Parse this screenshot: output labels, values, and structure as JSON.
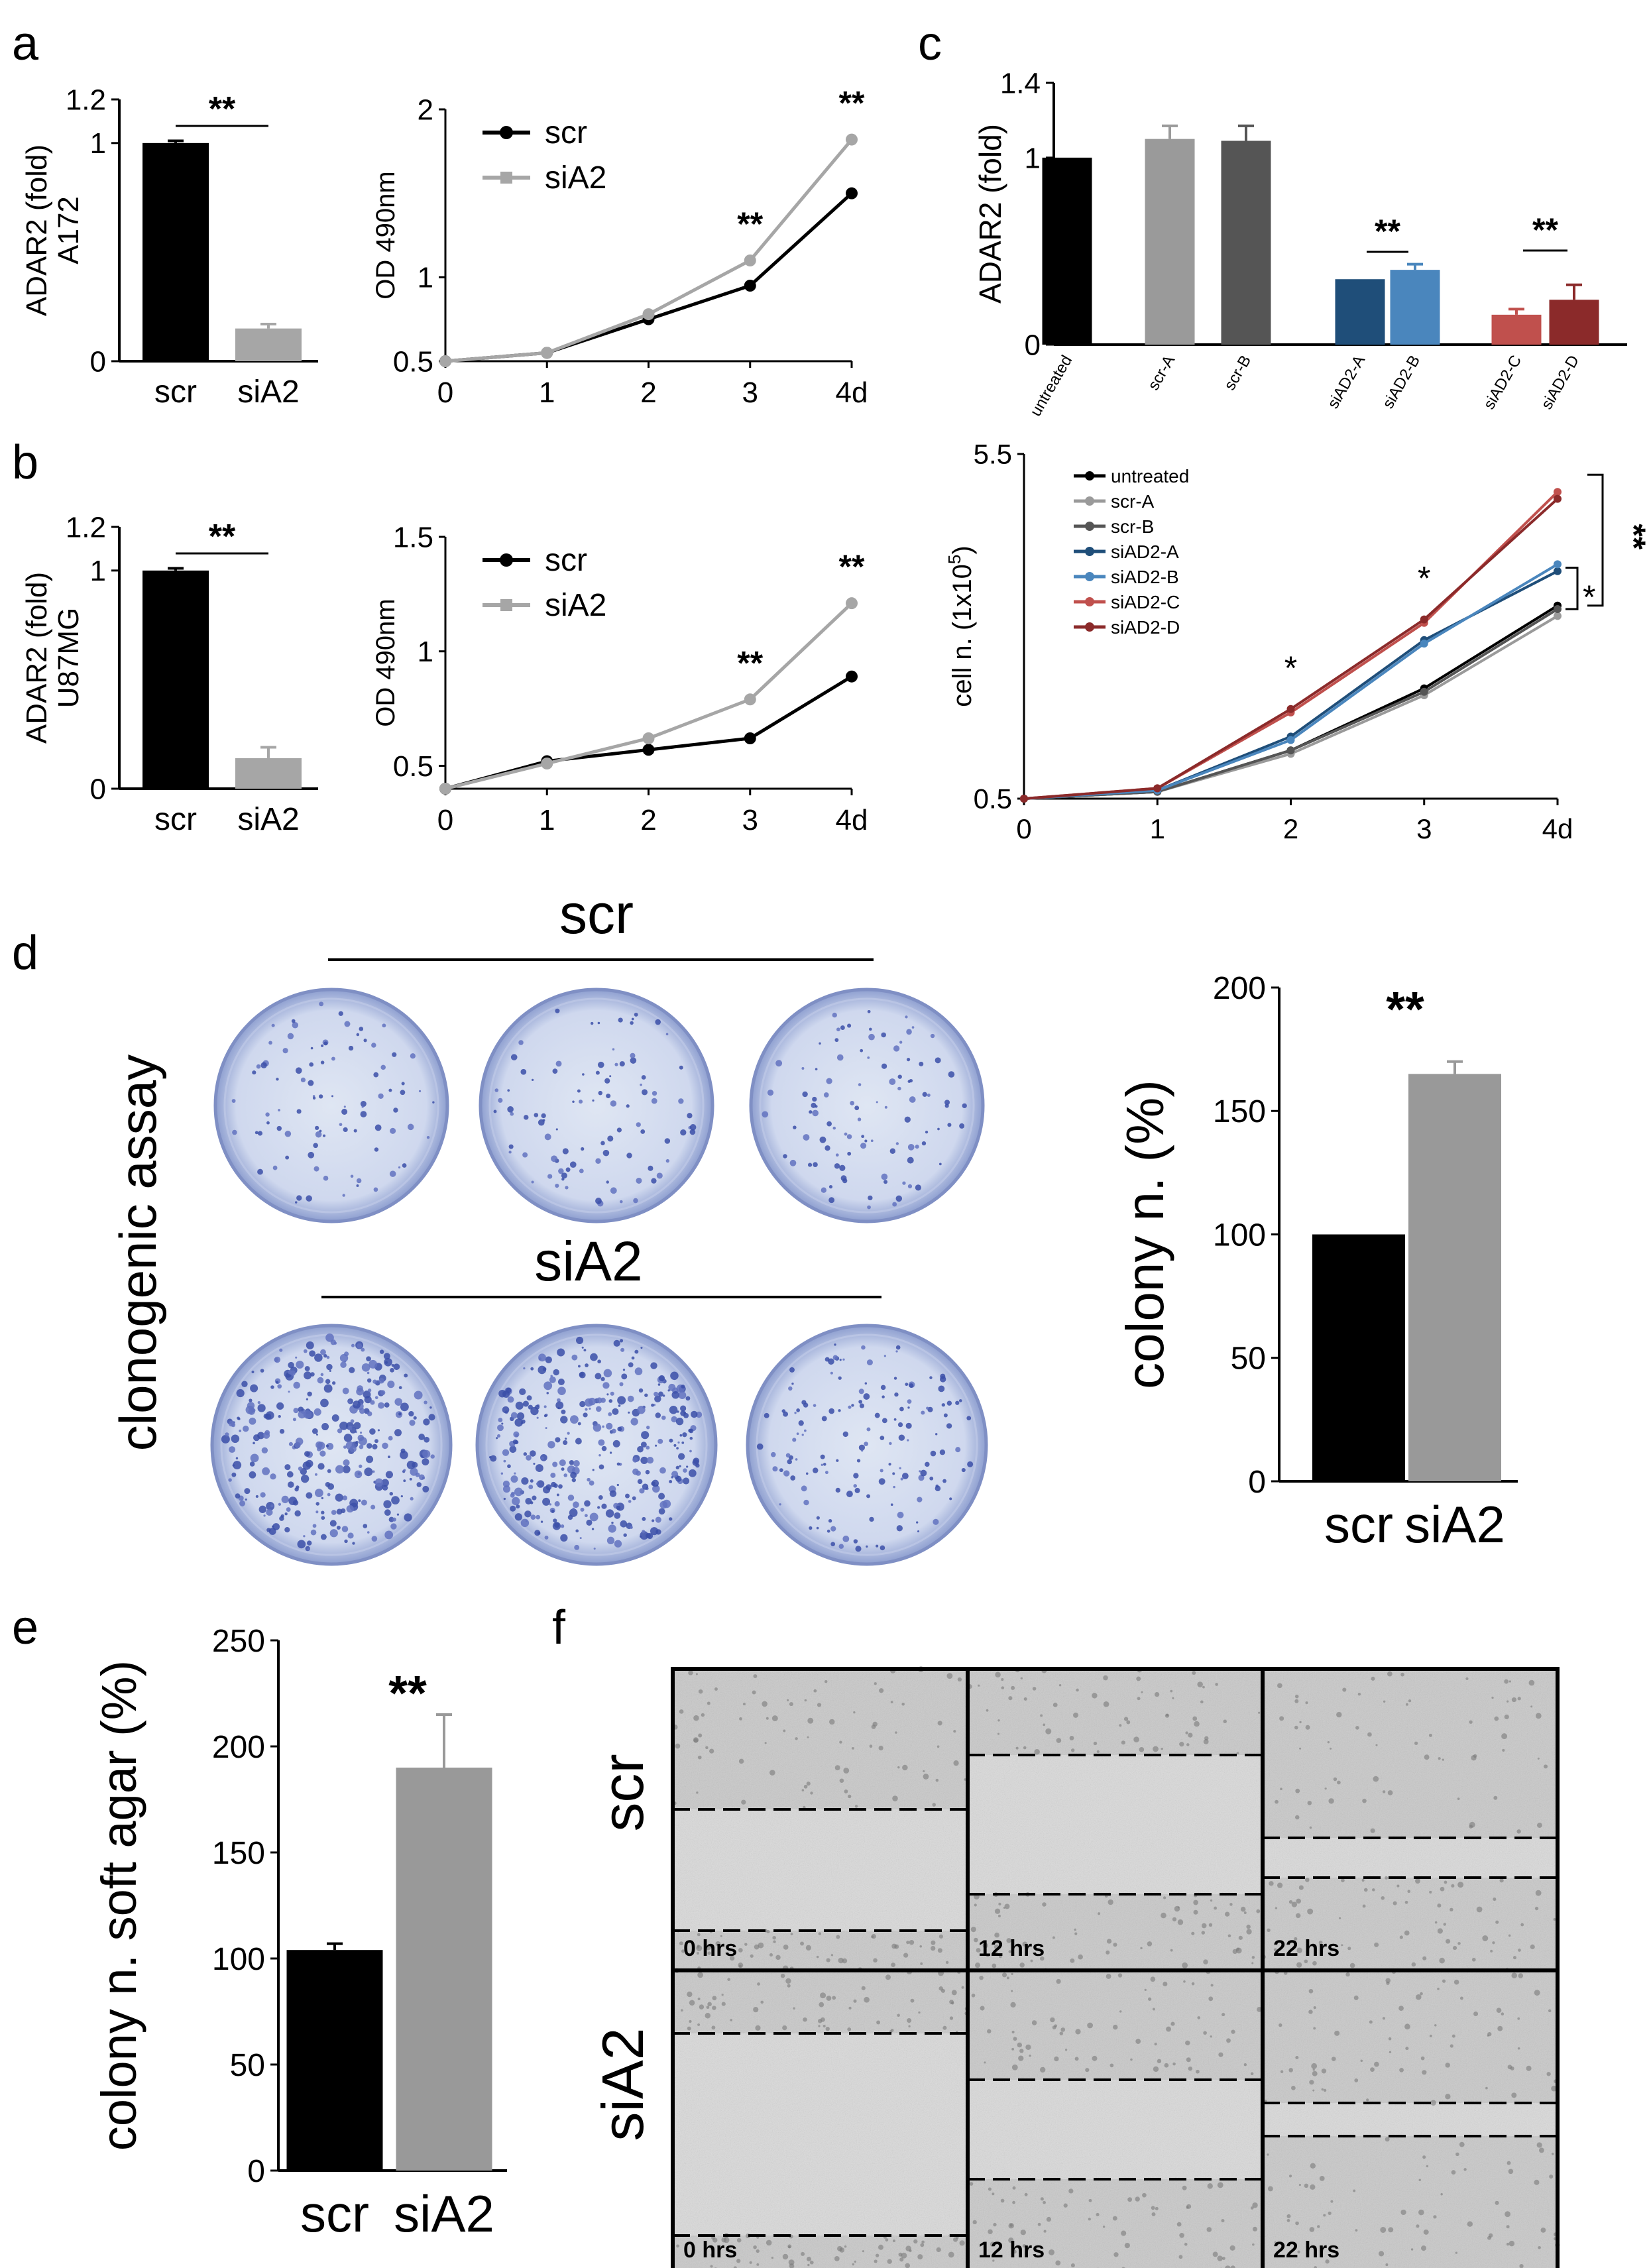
{
  "panels": {
    "a": "a",
    "b": "b",
    "c": "c",
    "d": "d",
    "e": "e",
    "f": "f"
  },
  "colors": {
    "black": "#000000",
    "gray": "#a6a6a6",
    "dark_gray": "#555555",
    "blue_dark": "#1f4e79",
    "blue_light": "#4a86bd",
    "red_light": "#c0504d",
    "red_dark": "#8b2a2a"
  },
  "chart_data": [
    {
      "id": "a-bar",
      "type": "bar",
      "title": "",
      "ylabel": "ADAR2 (fold)",
      "ylabel2": "A172",
      "xlabel": "",
      "categories": [
        "scr",
        "siA2"
      ],
      "values": [
        1.0,
        0.15
      ],
      "errors": [
        0.01,
        0.02
      ],
      "ylim": [
        0,
        1.2
      ],
      "yticks": [
        0,
        1,
        1.2
      ],
      "ytick_labels": [
        "0",
        "1",
        "1.2"
      ],
      "bar_colors": [
        "#000000",
        "#a6a6a6"
      ],
      "annotation": "**"
    },
    {
      "id": "a-line",
      "type": "line",
      "title": "",
      "ylabel": "OD 490nm",
      "xlabel": "",
      "x": [
        0,
        1,
        2,
        3,
        4
      ],
      "x_tick_labels": [
        "0",
        "1",
        "2",
        "3",
        "4d"
      ],
      "ylim": [
        0.5,
        2
      ],
      "yticks": [
        0.5,
        1,
        2
      ],
      "ytick_labels": [
        "0.5",
        "1",
        "2"
      ],
      "series": [
        {
          "name": "scr",
          "color": "#000000",
          "values": [
            0.5,
            0.55,
            0.75,
            0.95,
            1.5
          ]
        },
        {
          "name": "siA2",
          "color": "#a6a6a6",
          "values": [
            0.5,
            0.55,
            0.78,
            1.1,
            1.82
          ]
        }
      ],
      "annotations": [
        {
          "x": 3,
          "text": "**"
        },
        {
          "x": 4,
          "text": "**"
        }
      ],
      "legend": "top-left"
    },
    {
      "id": "b-bar",
      "type": "bar",
      "title": "",
      "ylabel": "ADAR2 (fold)",
      "ylabel2": "U87MG",
      "xlabel": "",
      "categories": [
        "scr",
        "siA2"
      ],
      "values": [
        1.0,
        0.14
      ],
      "errors": [
        0.01,
        0.05
      ],
      "ylim": [
        0,
        1.2
      ],
      "yticks": [
        0,
        1,
        1.2
      ],
      "ytick_labels": [
        "0",
        "1",
        "1.2"
      ],
      "bar_colors": [
        "#000000",
        "#a6a6a6"
      ],
      "annotation": "**"
    },
    {
      "id": "b-line",
      "type": "line",
      "title": "",
      "ylabel": "OD 490nm",
      "xlabel": "",
      "x": [
        0,
        1,
        2,
        3,
        4
      ],
      "x_tick_labels": [
        "0",
        "1",
        "2",
        "3",
        "4d"
      ],
      "ylim": [
        0.4,
        1.5
      ],
      "yticks": [
        0.5,
        1,
        1.5
      ],
      "ytick_labels": [
        "0.5",
        "1",
        "1.5"
      ],
      "series": [
        {
          "name": "scr",
          "color": "#000000",
          "values": [
            0.4,
            0.52,
            0.57,
            0.62,
            0.89
          ]
        },
        {
          "name": "siA2",
          "color": "#a6a6a6",
          "values": [
            0.4,
            0.51,
            0.62,
            0.79,
            1.21
          ]
        }
      ],
      "annotations": [
        {
          "x": 3,
          "text": "**"
        },
        {
          "x": 4,
          "text": "**"
        }
      ],
      "legend": "top-left"
    },
    {
      "id": "c-bar",
      "type": "bar",
      "title": "",
      "ylabel": "ADAR2 (fold)",
      "xlabel": "",
      "categories": [
        "untreated",
        "scr-A",
        "scr-B",
        "siAD2-A",
        "siAD2-B",
        "siAD2-C",
        "siAD2-D"
      ],
      "values": [
        1.0,
        1.1,
        1.09,
        0.35,
        0.4,
        0.16,
        0.24
      ],
      "errors": [
        0.0,
        0.07,
        0.08,
        0.0,
        0.03,
        0.03,
        0.08
      ],
      "ylim": [
        0,
        1.4
      ],
      "yticks": [
        0,
        1,
        1.4
      ],
      "ytick_labels": [
        "0",
        "1",
        "1.4"
      ],
      "bar_colors": [
        "#000000",
        "#9a9a9a",
        "#555555",
        "#1f4e79",
        "#4a86bd",
        "#c0504d",
        "#8b2a2a"
      ],
      "annotations": [
        {
          "between": [
            "siAD2-A",
            "siAD2-B"
          ],
          "text": "**"
        },
        {
          "between": [
            "siAD2-C",
            "siAD2-D"
          ],
          "text": "**"
        }
      ]
    },
    {
      "id": "c-line",
      "type": "line",
      "title": "",
      "ylabel": "cell n. (1x10",
      "ylabel_sup": "5",
      "ylabel_end": ")",
      "xlabel": "",
      "x": [
        0,
        1,
        2,
        3,
        4
      ],
      "x_tick_labels": [
        "0",
        "1",
        "2",
        "3",
        "4d"
      ],
      "ylim": [
        0.5,
        5.5
      ],
      "yticks": [
        0.5,
        5.5
      ],
      "ytick_labels": [
        "0.5",
        "5.5"
      ],
      "series": [
        {
          "name": "untreated",
          "color": "#000000",
          "values": [
            0.5,
            0.6,
            1.2,
            2.1,
            3.3
          ]
        },
        {
          "name": "scr-A",
          "color": "#9a9a9a",
          "values": [
            0.5,
            0.6,
            1.15,
            2.0,
            3.15
          ]
        },
        {
          "name": "scr-B",
          "color": "#555555",
          "values": [
            0.5,
            0.6,
            1.2,
            2.05,
            3.25
          ]
        },
        {
          "name": "siAD2-A",
          "color": "#1f4e79",
          "values": [
            0.5,
            0.62,
            1.4,
            2.8,
            3.8
          ]
        },
        {
          "name": "siAD2-B",
          "color": "#4a86bd",
          "values": [
            0.5,
            0.62,
            1.35,
            2.75,
            3.9
          ]
        },
        {
          "name": "siAD2-C",
          "color": "#c0504d",
          "values": [
            0.5,
            0.65,
            1.75,
            3.05,
            4.95
          ]
        },
        {
          "name": "siAD2-D",
          "color": "#8b2a2a",
          "values": [
            0.5,
            0.65,
            1.8,
            3.1,
            4.85
          ]
        }
      ],
      "annotations": [
        {
          "x": 2,
          "text": "*"
        },
        {
          "x": 3,
          "text": "*"
        },
        {
          "bracket": "inner",
          "text": "*"
        },
        {
          "bracket": "outer",
          "text": "**"
        }
      ],
      "legend": "top-left"
    },
    {
      "id": "d-bar",
      "type": "bar",
      "title": "",
      "ylabel": "colony n. (%)",
      "xlabel": "",
      "categories": [
        "scr",
        "siA2"
      ],
      "values": [
        100,
        165
      ],
      "errors": [
        0,
        5
      ],
      "ylim": [
        0,
        200
      ],
      "yticks": [
        0,
        50,
        100,
        150,
        200
      ],
      "ytick_labels": [
        "0",
        "50",
        "100",
        "150",
        "200"
      ],
      "bar_colors": [
        "#000000",
        "#999999"
      ],
      "annotation": "**"
    },
    {
      "id": "e-bar",
      "type": "bar",
      "title": "",
      "ylabel": "colony n. soft agar (%)",
      "xlabel": "",
      "categories": [
        "scr",
        "siA2"
      ],
      "values": [
        104,
        190
      ],
      "errors": [
        3,
        25
      ],
      "ylim": [
        0,
        250
      ],
      "yticks": [
        0,
        50,
        100,
        150,
        200,
        250
      ],
      "ytick_labels": [
        "0",
        "50",
        "100",
        "150",
        "200",
        "250"
      ],
      "bar_colors": [
        "#000000",
        "#999999"
      ],
      "annotation": "**"
    }
  ],
  "clonogenic": {
    "ylabel": "clonogenic assay",
    "row1_label": "scr",
    "row2_label": "siA2"
  },
  "wound": {
    "row_labels": [
      "scr",
      "siA2"
    ],
    "time_labels": [
      "0 hrs",
      "12 hrs",
      "22 hrs"
    ]
  }
}
